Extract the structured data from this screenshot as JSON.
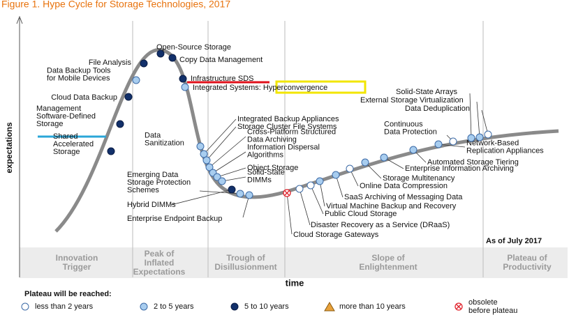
{
  "title": "Figure 1. Hype Cycle for Storage Technologies, 2017",
  "y_axis_label": "expectations",
  "x_axis_label": "time",
  "as_of": "As of July 2017",
  "phases": [
    [
      "Innovation",
      "Trigger"
    ],
    [
      "Peak of",
      "Inflated",
      "Expectations"
    ],
    [
      "Trough of",
      "Disillusionment"
    ],
    [
      "Slope of",
      "Enlightenment"
    ],
    [
      "Plateau of",
      "Productivity"
    ]
  ],
  "legend": {
    "title": "Plateau will be reached:",
    "items": [
      {
        "label": [
          "less than 2 years"
        ],
        "color": "#ffffff",
        "shape": "circle",
        "technologies": [
          [
            "Disaster Recovery as a Service (DRaaS)"
          ],
          [
            "Public Cloud Storage"
          ],
          [
            "Online Data Compression"
          ],
          [
            "Continuous",
            "Data Protection"
          ],
          [
            "Data Deduplication"
          ]
        ]
      },
      {
        "label": [
          "2 to 5 years"
        ],
        "color": "#a8cdef",
        "shape": "circle",
        "technologies": [
          [
            "Data Backup Tools",
            "for Mobile Devices"
          ],
          [
            "Integrated Systems: Hyperconvergence"
          ],
          [
            "Data",
            "Sanitization"
          ],
          [
            "Integrated Backup Appliances"
          ],
          [
            "Storage Cluster File Systems"
          ],
          [
            "Cross-Platform Structured",
            "Data Archiving"
          ],
          [
            "Information Dispersal",
            "Algorithms"
          ],
          [
            "Object Storage"
          ],
          [
            "Solid-State",
            "DIMMs"
          ],
          [
            "Emerging Data",
            "Storage Protection",
            "Schemes"
          ],
          [
            "Enterprise Endpoint Backup"
          ],
          [
            "Virtual Machine Backup and Recovery"
          ],
          [
            "SaaS Archiving of Messaging Data"
          ],
          [
            "Storage Multitenancy"
          ],
          [
            "Enterprise Information Archiving"
          ],
          [
            "Automated Storage Tiering"
          ],
          [
            "Network-Based",
            "Replication Appliances"
          ],
          [
            "Solid-State Arrays"
          ],
          [
            "External Storage Virtualization"
          ]
        ]
      },
      {
        "label": [
          "5 to 10 years"
        ],
        "color": "#12306a",
        "shape": "circle",
        "technologies": [
          [
            "File Analysis"
          ],
          [
            "Open-Source Storage"
          ],
          [
            "Copy Data Management"
          ],
          [
            "Infrastructure SDS"
          ],
          [
            "Cloud Data Backup"
          ],
          [
            "Management",
            "Software-Defined",
            "Storage"
          ],
          [
            "Shared",
            "Accelerated",
            "Storage"
          ],
          [
            "Hybrid DIMMs"
          ]
        ]
      },
      {
        "label": [
          "more than 10 years"
        ],
        "color": "#e8a13a",
        "shape": "triangle",
        "technologies": []
      },
      {
        "label": [
          "obsolete",
          "before plateau"
        ],
        "color": "#e0202a",
        "shape": "cross",
        "technologies": [
          [
            "Cloud Storage Gateways"
          ]
        ]
      }
    ]
  }
}
